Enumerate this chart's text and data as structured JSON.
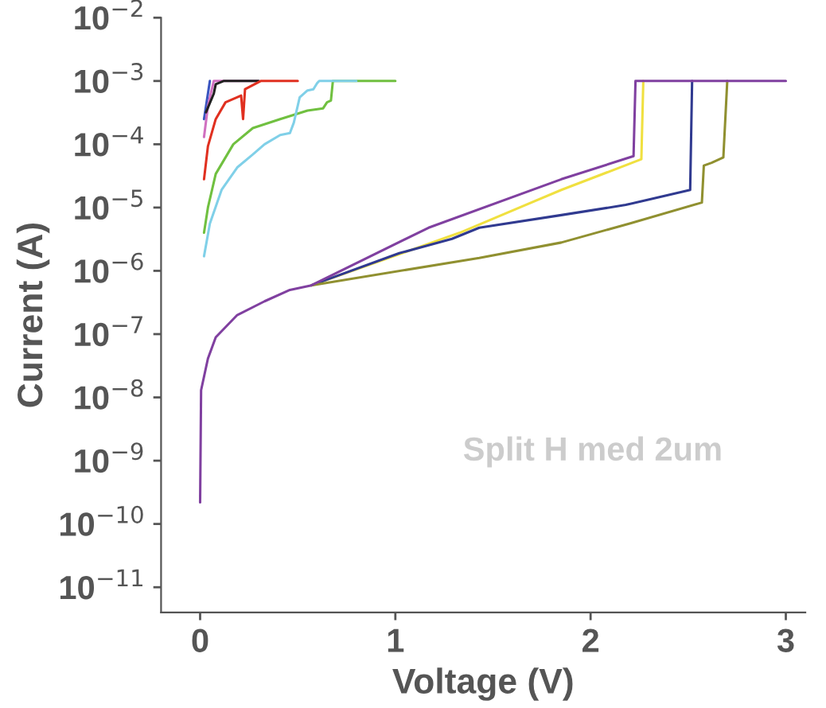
{
  "chart_data": {
    "type": "line",
    "xlabel": "Voltage (V)",
    "ylabel": "Current (A)",
    "log": "y",
    "xlim": [
      -0.2,
      3.1
    ],
    "xticks": [
      0,
      1,
      2,
      3
    ],
    "ylim": [
      4e-12,
      0.01
    ],
    "yticks": [
      {
        "value": 1e-11,
        "label": "10$^{−11}$"
      },
      {
        "value": 1e-10,
        "label": "10$^{−10}$"
      },
      {
        "value": 1e-09,
        "label": "10$^{−9}$"
      },
      {
        "value": 1e-08,
        "label": "10$^{−8}$"
      },
      {
        "value": 1e-07,
        "label": "10$^{−7}$"
      },
      {
        "value": 1e-06,
        "label": "10$^{−6}$"
      },
      {
        "value": 1e-05,
        "label": "10$^{−5}$"
      },
      {
        "value": 0.0001,
        "label": "10$^{−4}$"
      },
      {
        "value": 0.001,
        "label": "10$^{−3}$"
      },
      {
        "value": 0.01,
        "label": "10$^{−2}$"
      }
    ],
    "grid": false,
    "annotations": [
      "Split H med 2um"
    ],
    "series": [
      {
        "color": "#3a55c0",
        "x": [
          0.02,
          0.035,
          0.05
        ],
        "values": [
          0.00025,
          0.0005,
          0.001
        ]
      },
      {
        "color": "#d070c0",
        "x": [
          0.02,
          0.04,
          0.07,
          0.3
        ],
        "values": [
          0.00013,
          0.0004,
          0.001,
          0.001
        ]
      },
      {
        "color": "#202020",
        "x": [
          0.03,
          0.07,
          0.08,
          0.12,
          0.3
        ],
        "values": [
          0.00032,
          0.00063,
          0.00089,
          0.001,
          0.001
        ]
      },
      {
        "color": "#e03020",
        "x": [
          0.02,
          0.04,
          0.08,
          0.13,
          0.21,
          0.22,
          0.23,
          0.31,
          0.5
        ],
        "values": [
          2.8e-05,
          9.3e-05,
          0.00025,
          0.00046,
          0.00059,
          0.00025,
          0.00074,
          0.001,
          0.001
        ]
      },
      {
        "color": "#70c040",
        "x": [
          0.02,
          0.04,
          0.08,
          0.17,
          0.27,
          0.41,
          0.55,
          0.63,
          0.65,
          0.67,
          0.68,
          1.0
        ],
        "values": [
          4e-06,
          1e-05,
          3.4e-05,
          0.0001,
          0.00018,
          0.00025,
          0.00034,
          0.00037,
          0.00046,
          0.00049,
          0.001,
          0.001
        ]
      },
      {
        "color": "#80d0e8",
        "x": [
          0.02,
          0.05,
          0.11,
          0.19,
          0.27,
          0.33,
          0.41,
          0.46,
          0.48,
          0.51,
          0.55,
          0.58,
          0.6,
          0.61,
          0.8
        ],
        "values": [
          1.7e-06,
          5.6e-06,
          1.9e-05,
          4.3e-05,
          6.9e-05,
          0.0001,
          0.00014,
          0.00015,
          0.00022,
          0.00055,
          0.00071,
          0.00074,
          0.00093,
          0.001,
          0.001
        ]
      },
      {
        "color": "#f0e040",
        "x": [
          0.57,
          1.33,
          1.85,
          2.26,
          2.27
        ],
        "values": [
          5.9e-07,
          4e-06,
          1.9e-05,
          5.8e-05,
          0.001
        ]
      },
      {
        "color": "#303a90",
        "x": [
          0.57,
          1.02,
          1.29,
          1.43,
          1.85,
          2.18,
          2.51,
          2.52
        ],
        "values": [
          5.9e-07,
          1.9e-06,
          3.2e-06,
          4.8e-06,
          7.6e-06,
          1.1e-05,
          1.9e-05,
          0.001
        ]
      },
      {
        "color": "#909030",
        "x": [
          0.57,
          1.43,
          1.85,
          2.2,
          2.57,
          2.58,
          2.62,
          2.68,
          2.7
        ],
        "values": [
          5.9e-07,
          1.6e-06,
          2.8e-06,
          5.6e-06,
          1.2e-05,
          4.6e-05,
          5.1e-05,
          6.2e-05,
          0.001
        ]
      },
      {
        "color": "#8040a0",
        "x": [
          0,
          0.005,
          0.04,
          0.08,
          0.19,
          0.33,
          0.46,
          0.57,
          1.17,
          1.85,
          2.22,
          2.23,
          3.0
        ],
        "values": [
          2.2e-10,
          1.3e-08,
          4.1e-08,
          8.9e-08,
          2e-07,
          3.3e-07,
          5e-07,
          5.9e-07,
          4.8e-06,
          2.8e-05,
          6.5e-05,
          0.001,
          0.001
        ]
      }
    ]
  }
}
